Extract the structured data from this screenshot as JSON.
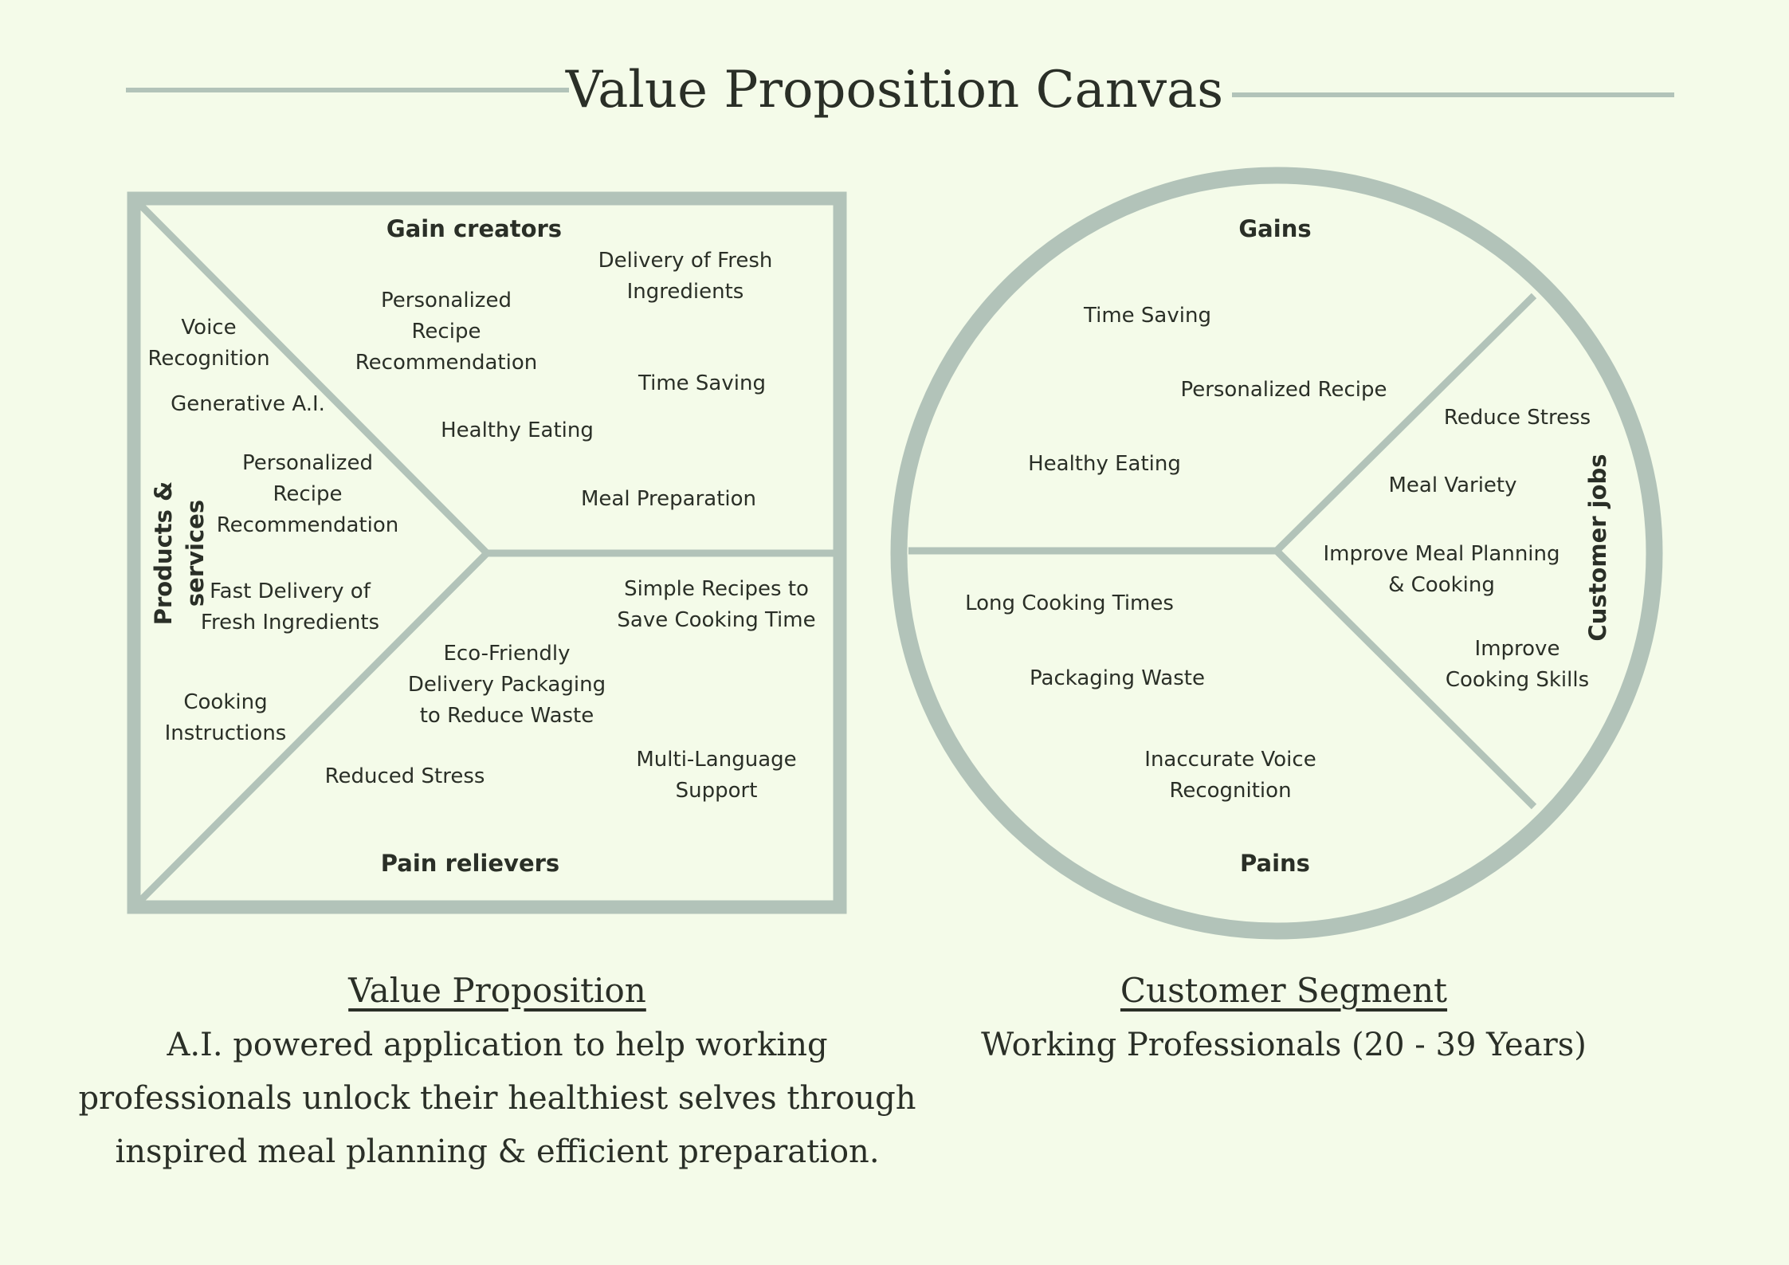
{
  "title": "Value Proposition Canvas",
  "colors": {
    "background": "#f4fbe9",
    "shape_stroke": "#b2c3b9",
    "text": "#2a2f27"
  },
  "value_map": {
    "gain_creators_heading": "Gain creators",
    "products_services_heading": "Products & services",
    "pain_relievers_heading": "Pain relievers",
    "gain_creators": [
      "Delivery of Fresh\nIngredients",
      "Personalized\nRecipe\nRecommendation",
      "Time Saving",
      "Healthy Eating",
      "Meal Preparation"
    ],
    "products_services": [
      "Voice\nRecognition",
      "Generative A.I.",
      "Personalized\nRecipe\nRecommendation",
      "Fast Delivery of\nFresh Ingredients",
      "Cooking\nInstructions"
    ],
    "pain_relievers": [
      "Simple Recipes to\nSave Cooking Time",
      "Eco-Friendly\nDelivery Packaging\nto Reduce Waste",
      "Multi-Language\nSupport",
      "Reduced Stress"
    ]
  },
  "customer_profile": {
    "gains_heading": "Gains",
    "customer_jobs_heading": "Customer jobs",
    "pains_heading": "Pains",
    "gains": [
      "Time Saving",
      "Personalized Recipe",
      "Healthy Eating"
    ],
    "customer_jobs": [
      "Reduce Stress",
      "Meal Variety",
      "Improve Meal Planning\n& Cooking",
      "Improve\nCooking Skills"
    ],
    "pains": [
      "Long Cooking Times",
      "Packaging Waste",
      "Inaccurate Voice\nRecognition"
    ]
  },
  "value_proposition": {
    "title": "Value Proposition",
    "description": "A.I. powered application to help working\nprofessionals unlock their healthiest selves through\ninspired meal planning & efficient preparation."
  },
  "customer_segment": {
    "title": "Customer Segment",
    "description": "Working Professionals (20 - 39 Years)"
  }
}
